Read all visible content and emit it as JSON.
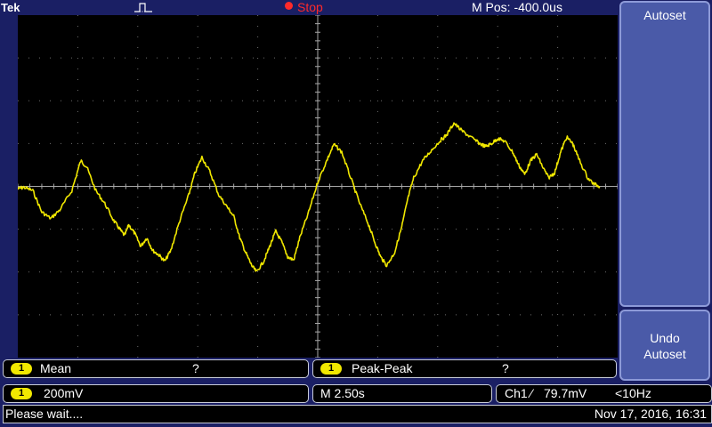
{
  "top_bar": {
    "brand": "Tek",
    "trigger_icon": "pulse-trigger-icon",
    "run_state": "Stop",
    "horizontal_position": "M Pos: -400.0us"
  },
  "side_menu": {
    "autoset_label": "Autoset",
    "undo_label_line1": "Undo",
    "undo_label_line2": "Autoset"
  },
  "measurements": [
    {
      "channel": "1",
      "label": "Mean",
      "value": "?"
    },
    {
      "channel": "1",
      "label": "Peak-Peak",
      "value": "?"
    }
  ],
  "vertical": {
    "channel": "1",
    "scale": "200mV"
  },
  "horizontal": {
    "scale": "M 2.50s"
  },
  "trigger": {
    "source": "Ch1",
    "slope": "⁄",
    "level": "79.7mV",
    "frequency": "<10Hz"
  },
  "status": {
    "message": "Please wait....",
    "datetime": "Nov 17, 2016, 16:31"
  },
  "colors": {
    "background": "#1a1f64",
    "trace_ch1": "#f1e800",
    "run_state": "#ff2a2a",
    "button": "#4a5aa8"
  },
  "waveform": {
    "channel": "1",
    "x_divisions": 10,
    "y_divisions": 8,
    "samples_div": [
      [
        0.0,
        -0.06
      ],
      [
        0.1,
        -0.02
      ],
      [
        0.25,
        -0.1
      ],
      [
        0.4,
        -0.6
      ],
      [
        0.55,
        -0.75
      ],
      [
        0.7,
        -0.55
      ],
      [
        0.9,
        -0.1
      ],
      [
        1.05,
        0.6
      ],
      [
        1.15,
        0.45
      ],
      [
        1.3,
        -0.1
      ],
      [
        1.45,
        -0.4
      ],
      [
        1.6,
        -0.8
      ],
      [
        1.7,
        -1.0
      ],
      [
        1.78,
        -1.15
      ],
      [
        1.85,
        -0.9
      ],
      [
        1.95,
        -1.1
      ],
      [
        2.05,
        -1.4
      ],
      [
        2.15,
        -1.2
      ],
      [
        2.25,
        -1.5
      ],
      [
        2.35,
        -1.6
      ],
      [
        2.45,
        -1.75
      ],
      [
        2.55,
        -1.5
      ],
      [
        2.7,
        -0.8
      ],
      [
        2.85,
        -0.2
      ],
      [
        2.95,
        0.3
      ],
      [
        3.07,
        0.68
      ],
      [
        3.2,
        0.35
      ],
      [
        3.35,
        -0.2
      ],
      [
        3.5,
        -0.5
      ],
      [
        3.6,
        -0.7
      ],
      [
        3.7,
        -1.2
      ],
      [
        3.8,
        -1.55
      ],
      [
        3.9,
        -1.85
      ],
      [
        3.98,
        -2.0
      ],
      [
        4.1,
        -1.75
      ],
      [
        4.2,
        -1.4
      ],
      [
        4.3,
        -1.05
      ],
      [
        4.4,
        -1.3
      ],
      [
        4.5,
        -1.65
      ],
      [
        4.6,
        -1.72
      ],
      [
        4.7,
        -1.2
      ],
      [
        4.85,
        -0.6
      ],
      [
        5.0,
        0.1
      ],
      [
        5.15,
        0.6
      ],
      [
        5.27,
        0.98
      ],
      [
        5.4,
        0.8
      ],
      [
        5.55,
        0.2
      ],
      [
        5.7,
        -0.4
      ],
      [
        5.85,
        -0.9
      ],
      [
        5.95,
        -1.3
      ],
      [
        6.05,
        -1.65
      ],
      [
        6.15,
        -1.85
      ],
      [
        6.28,
        -1.55
      ],
      [
        6.4,
        -0.95
      ],
      [
        6.5,
        -0.3
      ],
      [
        6.6,
        0.2
      ],
      [
        6.75,
        0.6
      ],
      [
        6.9,
        0.85
      ],
      [
        7.05,
        1.08
      ],
      [
        7.15,
        1.2
      ],
      [
        7.27,
        1.48
      ],
      [
        7.4,
        1.3
      ],
      [
        7.55,
        1.15
      ],
      [
        7.7,
        1.0
      ],
      [
        7.8,
        0.93
      ],
      [
        7.9,
        1.0
      ],
      [
        8.0,
        1.12
      ],
      [
        8.12,
        1.05
      ],
      [
        8.25,
        0.8
      ],
      [
        8.35,
        0.5
      ],
      [
        8.45,
        0.28
      ],
      [
        8.55,
        0.6
      ],
      [
        8.65,
        0.75
      ],
      [
        8.75,
        0.45
      ],
      [
        8.85,
        0.2
      ],
      [
        8.95,
        0.32
      ],
      [
        9.05,
        0.8
      ],
      [
        9.15,
        1.15
      ],
      [
        9.25,
        1.0
      ],
      [
        9.35,
        0.65
      ],
      [
        9.5,
        0.2
      ],
      [
        9.6,
        0.06
      ],
      [
        9.7,
        0.0
      ]
    ]
  }
}
